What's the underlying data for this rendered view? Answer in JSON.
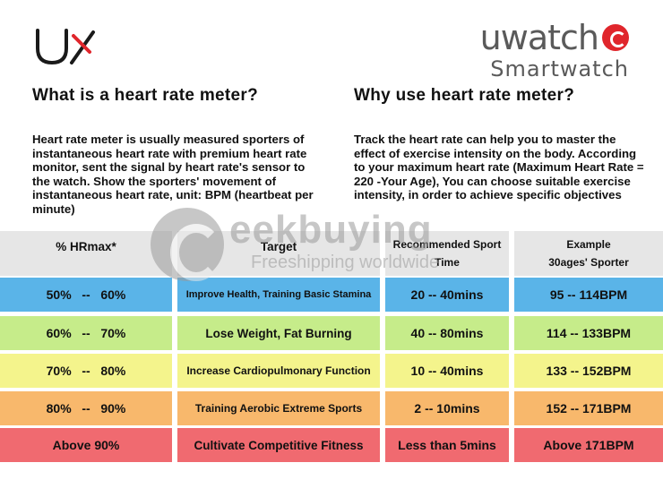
{
  "logo_ux": {
    "icon": "ux-logo-icon",
    "color": "#1a1a1a",
    "accent": "#e0262c"
  },
  "brand": {
    "name": "uwatch",
    "subtitle": "Smartwatch",
    "color": "#5a5a5a",
    "mark_color": "#e0262c"
  },
  "left": {
    "heading": "What is a heart rate meter?",
    "paragraph": "Heart rate meter is usually measured sporters of instantaneous heart rate with premium heart rate monitor, sent the signal by heart rate's sensor to the watch. Show the sporters' movement of instantaneous heart rate, unit: BPM (heartbeat per minute)"
  },
  "right": {
    "heading": "Why use heart rate meter?",
    "paragraph": "Track the heart rate can help you to master the effect of exercise intensity on the body. According to your maximum heart rate (Maximum Heart Rate = 220 -Your Age), You can choose suitable exercise intensity, in order to achieve specific objectives"
  },
  "table": {
    "header": {
      "hrmax": "% HRmax*",
      "target": "Target",
      "time_line1": "Recommended Sport",
      "time_line2": "Time",
      "example_line1": "Example",
      "example_line2": "30ages' Sporter"
    },
    "rows": [
      {
        "hrmax": "50%   --   60%",
        "target": "Improve Health, Training Basic Stamina",
        "time": "20 -- 40mins",
        "example": "95 -- 114BPM",
        "color": "#5ab4e8"
      },
      {
        "hrmax": "60%   --   70%",
        "target": "Lose Weight, Fat Burning",
        "time": "40 -- 80mins",
        "example": "114 -- 133BPM",
        "color": "#c6ec8a"
      },
      {
        "hrmax": "70%   --   80%",
        "target": "Increase Cardiopulmonary Function",
        "time": "10 -- 40mins",
        "example": "133 -- 152BPM",
        "color": "#f4f48c"
      },
      {
        "hrmax": "80%   --   90%",
        "target": "Training Aerobic Extreme Sports",
        "time": "2 -- 10mins",
        "example": "152 -- 171BPM",
        "color": "#f8b86c"
      },
      {
        "hrmax": "Above 90%",
        "target": "Cultivate Competitive Fitness",
        "time": "Less than 5mins",
        "example": "Above 171BPM",
        "color": "#f06a70"
      }
    ],
    "header_color": "#e6e6e6"
  },
  "watermark": {
    "main": "eekbuying",
    "sub": "Freeshipping worldwide",
    "icon": "geekbuying-g-icon",
    "color": "#9a9a9a"
  }
}
